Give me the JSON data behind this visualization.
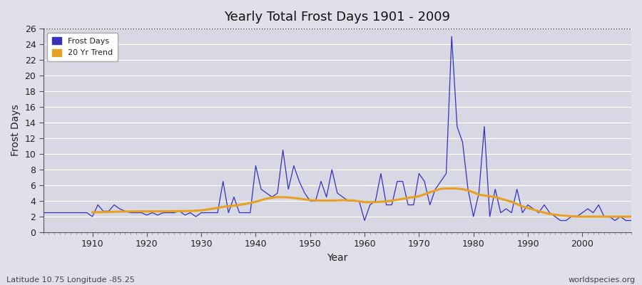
{
  "title": "Yearly Total Frost Days 1901 - 2009",
  "xlabel": "Year",
  "ylabel": "Frost Days",
  "footer_left": "Latitude 10.75 Longitude -85.25",
  "footer_right": "worldspecies.org",
  "legend_labels": [
    "Frost Days",
    "20 Yr Trend"
  ],
  "legend_colors": [
    "#3333bb",
    "#e8a020"
  ],
  "line_color": "#3333bb",
  "trend_color": "#e8a020",
  "fig_bg_color": "#e0e0ea",
  "plot_bg_color": "#d8d8e4",
  "grid_color": "#ffffff",
  "ylim": [
    0,
    26
  ],
  "xlim": [
    1901,
    2009
  ],
  "xticks": [
    1910,
    1920,
    1930,
    1940,
    1950,
    1960,
    1970,
    1980,
    1990,
    2000
  ],
  "yticks": [
    0,
    2,
    4,
    6,
    8,
    10,
    12,
    14,
    16,
    18,
    20,
    22,
    24,
    26
  ],
  "years": [
    1901,
    1902,
    1903,
    1904,
    1905,
    1906,
    1907,
    1908,
    1909,
    1910,
    1911,
    1912,
    1913,
    1914,
    1915,
    1916,
    1917,
    1918,
    1919,
    1920,
    1921,
    1922,
    1923,
    1924,
    1925,
    1926,
    1927,
    1928,
    1929,
    1930,
    1931,
    1932,
    1933,
    1934,
    1935,
    1936,
    1937,
    1938,
    1939,
    1940,
    1941,
    1942,
    1943,
    1944,
    1945,
    1946,
    1947,
    1948,
    1949,
    1950,
    1951,
    1952,
    1953,
    1954,
    1955,
    1956,
    1957,
    1958,
    1959,
    1960,
    1961,
    1962,
    1963,
    1964,
    1965,
    1966,
    1967,
    1968,
    1969,
    1970,
    1971,
    1972,
    1973,
    1974,
    1975,
    1976,
    1977,
    1978,
    1979,
    1980,
    1981,
    1982,
    1983,
    1984,
    1985,
    1986,
    1987,
    1988,
    1989,
    1990,
    1991,
    1992,
    1993,
    1994,
    1995,
    1996,
    1997,
    1998,
    1999,
    2000,
    2001,
    2002,
    2003,
    2004,
    2005,
    2006,
    2007,
    2008,
    2009
  ],
  "frost_days": [
    2.5,
    2.5,
    2.5,
    2.5,
    2.5,
    2.5,
    2.5,
    2.5,
    2.5,
    2.0,
    3.5,
    2.7,
    2.7,
    3.5,
    3.0,
    2.7,
    2.5,
    2.5,
    2.5,
    2.2,
    2.5,
    2.2,
    2.5,
    2.5,
    2.5,
    2.7,
    2.2,
    2.5,
    2.0,
    2.5,
    2.5,
    2.5,
    2.5,
    6.5,
    2.5,
    4.5,
    2.5,
    2.5,
    2.5,
    8.5,
    5.5,
    5.0,
    4.5,
    5.0,
    10.5,
    5.5,
    8.5,
    6.5,
    5.0,
    4.0,
    4.0,
    6.5,
    4.5,
    8.0,
    5.0,
    4.5,
    4.0,
    4.0,
    4.0,
    1.5,
    3.5,
    4.0,
    7.5,
    3.5,
    3.5,
    6.5,
    6.5,
    3.5,
    3.5,
    7.5,
    6.5,
    3.5,
    5.5,
    6.5,
    7.5,
    25.0,
    13.5,
    11.5,
    5.5,
    2.0,
    5.0,
    13.5,
    2.0,
    5.5,
    2.5,
    3.0,
    2.5,
    5.5,
    2.5,
    3.5,
    3.0,
    2.5,
    3.5,
    2.5,
    2.0,
    1.5,
    1.5,
    2.0,
    2.0,
    2.5,
    3.0,
    2.5,
    3.5,
    2.0,
    2.0,
    1.5,
    2.0,
    1.5,
    1.5
  ],
  "trend_years": [
    1910,
    1912,
    1914,
    1916,
    1918,
    1920,
    1922,
    1924,
    1926,
    1928,
    1930,
    1932,
    1934,
    1936,
    1938,
    1940,
    1942,
    1944,
    1946,
    1948,
    1950,
    1952,
    1954,
    1956,
    1958,
    1960,
    1962,
    1964,
    1966,
    1968,
    1970,
    1972,
    1974,
    1975,
    1976,
    1977,
    1978,
    1979,
    1980,
    1981,
    1982,
    1983,
    1984,
    1985,
    1986,
    1987,
    1988,
    1989,
    1990,
    1991,
    1992,
    1993,
    1994,
    1995,
    1996,
    1997,
    1998,
    1999,
    2000,
    2001,
    2002,
    2003,
    2004,
    2005,
    2006,
    2007,
    2008,
    2009
  ],
  "trend_values": [
    2.55,
    2.58,
    2.62,
    2.65,
    2.67,
    2.67,
    2.67,
    2.68,
    2.7,
    2.72,
    2.8,
    3.0,
    3.25,
    3.4,
    3.6,
    3.9,
    4.3,
    4.5,
    4.45,
    4.3,
    4.1,
    4.05,
    4.05,
    4.1,
    4.05,
    3.85,
    3.85,
    3.95,
    4.15,
    4.4,
    4.6,
    5.1,
    5.55,
    5.6,
    5.6,
    5.58,
    5.5,
    5.35,
    5.1,
    4.8,
    4.7,
    4.6,
    4.5,
    4.3,
    4.1,
    3.9,
    3.6,
    3.3,
    3.1,
    2.9,
    2.7,
    2.5,
    2.35,
    2.25,
    2.15,
    2.1,
    2.05,
    2.02,
    2.0,
    2.0,
    2.0,
    2.0,
    2.0,
    2.0,
    2.0,
    2.0,
    2.0,
    2.0
  ]
}
